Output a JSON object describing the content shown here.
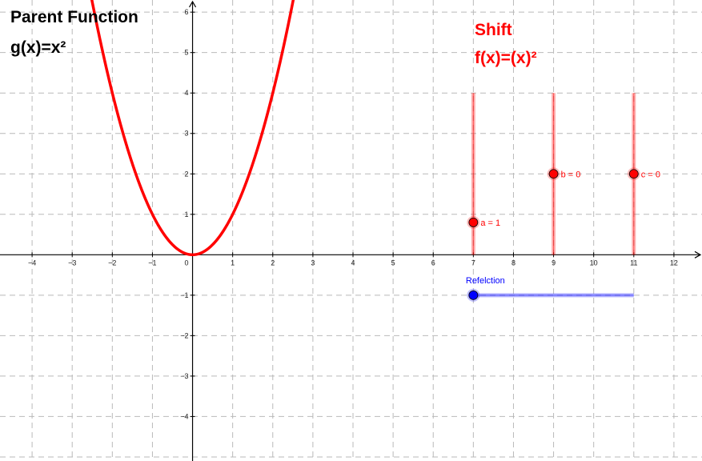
{
  "texts": {
    "parent_title": "Parent Function",
    "parent_formula": "g(x)=x²",
    "shift_title": "Shift",
    "shift_formula": "f(x)=(x)²"
  },
  "graph": {
    "x_range": [
      -4.8,
      12.7
    ],
    "y_range": [
      -5.1,
      6.3
    ],
    "x_ticks": [
      -4,
      -3,
      -2,
      -1,
      1,
      2,
      3,
      4,
      5,
      6,
      7,
      8,
      9,
      10,
      11,
      12
    ],
    "y_ticks": [
      -4,
      -3,
      -2,
      -1,
      1,
      2,
      3,
      4,
      5,
      6
    ],
    "tick_labels": {
      "x": [
        "−4",
        "−3",
        "−2",
        "−1",
        "1",
        "2",
        "3",
        "4",
        "5",
        "6",
        "7",
        "8",
        "9",
        "10",
        "11",
        "12"
      ],
      "y": [
        "−4",
        "−3",
        "−2",
        "−1",
        "1",
        "2",
        "3",
        "4",
        "5",
        "6"
      ]
    },
    "origin_label": "0",
    "grid": true,
    "function": {
      "expression": "x^2",
      "color": "#ff0000"
    }
  },
  "sliders": [
    {
      "label": "a = 1",
      "value": 1,
      "position": 0.8,
      "color": "#ff0000",
      "orientation": "vertical",
      "track_x": 7,
      "track_y_min": 0,
      "track_y_max": 4
    },
    {
      "label": "b = 0",
      "value": 0,
      "position": 2,
      "color": "#ff0000",
      "orientation": "vertical",
      "track_x": 9,
      "track_y_min": 0,
      "track_y_max": 4
    },
    {
      "label": "c = 0",
      "value": 0,
      "position": 2,
      "color": "#ff0000",
      "orientation": "vertical",
      "track_x": 11,
      "track_y_min": 0,
      "track_y_max": 4
    },
    {
      "label": "Refelction",
      "value": 0,
      "position": 7,
      "color": "#0000ff",
      "orientation": "horizontal",
      "track_y": -1,
      "track_x_min": 7,
      "track_x_max": 11
    }
  ],
  "colors": {
    "parent_text": "#000000",
    "shift_text": "#ff0000",
    "curve": "#ff0000",
    "slider_red": "#ff0000",
    "slider_blue": "#0000ff"
  }
}
